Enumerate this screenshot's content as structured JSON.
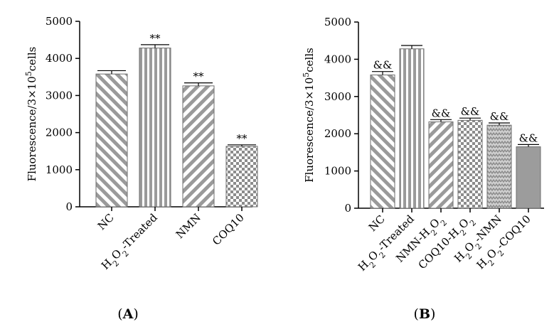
{
  "chart_data": [
    {
      "type": "bar",
      "panel": "A",
      "categories": [
        "NC",
        "H2O2-Treated",
        "NMN",
        "COQ10"
      ],
      "category_labels": [
        {
          "parts": [
            {
              "t": "NC"
            }
          ]
        },
        {
          "parts": [
            {
              "t": "H"
            },
            {
              "t": "2",
              "sub": true
            },
            {
              "t": "O"
            },
            {
              "t": "2",
              "sub": true
            },
            {
              "t": "-Treated"
            }
          ]
        },
        {
          "parts": [
            {
              "t": "NMN"
            }
          ]
        },
        {
          "parts": [
            {
              "t": "COQ10"
            }
          ]
        }
      ],
      "values": [
        3580,
        4280,
        3260,
        1630
      ],
      "errors": [
        90,
        90,
        80,
        40
      ],
      "annotations": [
        "",
        "**",
        "**",
        "**"
      ],
      "patterns": [
        "diag-left",
        "vertical",
        "diag-right",
        "checker"
      ],
      "ylabel_parts": [
        {
          "t": "Fluorescence/3×10"
        },
        {
          "t": "5",
          "sup": true
        },
        {
          "t": "cells"
        }
      ],
      "yticks": [
        "0",
        "1000",
        "2000",
        "3000",
        "4000",
        "5000"
      ],
      "ylim": [
        0,
        5000
      ],
      "label": "A"
    },
    {
      "type": "bar",
      "panel": "B",
      "categories": [
        "NC",
        "H2O2-Treated",
        "NMN-H2O2",
        "COQ10-H2O2",
        "H2O2-NMN",
        "H2O2-COQ10"
      ],
      "category_labels": [
        {
          "parts": [
            {
              "t": "NC"
            }
          ]
        },
        {
          "parts": [
            {
              "t": "H"
            },
            {
              "t": "2",
              "sub": true
            },
            {
              "t": "O"
            },
            {
              "t": "2",
              "sub": true
            },
            {
              "t": "-Treated"
            }
          ]
        },
        {
          "parts": [
            {
              "t": "NMN-H"
            },
            {
              "t": "2",
              "sub": true
            },
            {
              "t": "O"
            },
            {
              "t": "2",
              "sub": true
            }
          ]
        },
        {
          "parts": [
            {
              "t": "COQ10-H"
            },
            {
              "t": "2",
              "sub": true
            },
            {
              "t": "O"
            },
            {
              "t": "2",
              "sub": true
            }
          ]
        },
        {
          "parts": [
            {
              "t": "H"
            },
            {
              "t": "2",
              "sub": true
            },
            {
              "t": "O"
            },
            {
              "t": "2",
              "sub": true
            },
            {
              "t": "-NMN"
            }
          ]
        },
        {
          "parts": [
            {
              "t": "H"
            },
            {
              "t": "2",
              "sub": true
            },
            {
              "t": "O"
            },
            {
              "t": "2",
              "sub": true
            },
            {
              "t": "-COQ10"
            }
          ]
        }
      ],
      "values": [
        3580,
        4280,
        2320,
        2360,
        2230,
        1650
      ],
      "errors": [
        90,
        90,
        60,
        60,
        60,
        60
      ],
      "annotations": [
        "&&",
        "",
        "&&",
        "&&",
        "&&",
        "&&"
      ],
      "patterns": [
        "diag-left",
        "vertical",
        "diag-right",
        "checker",
        "zigzag",
        "solid"
      ],
      "ylabel_parts": [
        {
          "t": "Fluorescence/3×10"
        },
        {
          "t": "5",
          "sup": true
        },
        {
          "t": "cells"
        }
      ],
      "yticks": [
        "0",
        "1000",
        "2000",
        "3000",
        "4000",
        "5000"
      ],
      "ylim": [
        0,
        5000
      ],
      "label": "B"
    }
  ],
  "colors": {
    "bar_fill": "#9a9a9a",
    "bar_gap": "#ffffff",
    "solid_fill": "#9c9c9c",
    "axis": "#000000"
  }
}
